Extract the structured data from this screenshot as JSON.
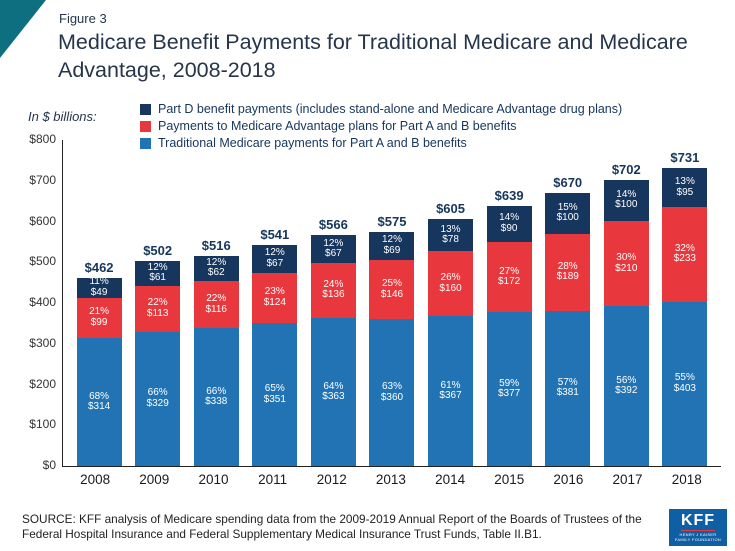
{
  "header": {
    "figure_label": "Figure 3",
    "title": "Medicare Benefit Payments for Traditional Medicare and Medicare Advantage, 2008-2018"
  },
  "chart_data": {
    "type": "stacked-bar",
    "title": "Medicare Benefit Payments for Traditional Medicare and Medicare Advantage, 2008-2018",
    "units_label": "In $ billions:",
    "ylim": [
      0,
      800
    ],
    "ytick_step": 100,
    "ytick_labels": [
      "$0",
      "$100",
      "$200",
      "$300",
      "$400",
      "$500",
      "$600",
      "$700",
      "$800"
    ],
    "grid": false,
    "legend_position": "top",
    "legend": [
      {
        "label": "Part D benefit payments (includes stand-alone and Medicare Advantage drug plans)",
        "color": "#17365d"
      },
      {
        "label": "Payments to Medicare Advantage plans for Part A and B benefits",
        "color": "#e8383d"
      },
      {
        "label": "Traditional Medicare payments for Part A and B benefits",
        "color": "#2173b4"
      }
    ],
    "categories": [
      "2008",
      "2009",
      "2010",
      "2011",
      "2012",
      "2013",
      "2014",
      "2015",
      "2016",
      "2017",
      "2018"
    ],
    "totals": [
      462,
      502,
      516,
      541,
      566,
      575,
      605,
      639,
      670,
      702,
      731
    ],
    "total_labels": [
      "$462",
      "$502",
      "$516",
      "$541",
      "$566",
      "$575",
      "$605",
      "$639",
      "$670",
      "$702",
      "$731"
    ],
    "series": [
      {
        "id": "traditional",
        "name": "Traditional Medicare payments for Part A and B benefits",
        "color": "#2173b4",
        "values": [
          314,
          329,
          338,
          351,
          363,
          360,
          367,
          377,
          381,
          392,
          403
        ],
        "pct_labels": [
          "68%",
          "66%",
          "66%",
          "65%",
          "64%",
          "63%",
          "61%",
          "59%",
          "57%",
          "56%",
          "55%"
        ],
        "value_labels": [
          "$314",
          "$329",
          "$338",
          "$351",
          "$363",
          "$360",
          "$367",
          "$377",
          "$381",
          "$392",
          "$403"
        ]
      },
      {
        "id": "medicare-advantage",
        "name": "Payments to Medicare Advantage plans for Part A and B benefits",
        "color": "#e8383d",
        "values": [
          99,
          113,
          116,
          124,
          136,
          146,
          160,
          172,
          189,
          210,
          233
        ],
        "pct_labels": [
          "21%",
          "22%",
          "22%",
          "23%",
          "24%",
          "25%",
          "26%",
          "27%",
          "28%",
          "30%",
          "32%"
        ],
        "value_labels": [
          "$99",
          "$113",
          "$116",
          "$124",
          "$136",
          "$146",
          "$160",
          "$172",
          "$189",
          "$210",
          "$233"
        ]
      },
      {
        "id": "part-d",
        "name": "Part D benefit payments (includes stand-alone and Medicare Advantage drug plans)",
        "color": "#17365d",
        "values": [
          49,
          61,
          62,
          67,
          67,
          69,
          78,
          90,
          100,
          100,
          95
        ],
        "pct_labels": [
          "11%",
          "12%",
          "12%",
          "12%",
          "12%",
          "12%",
          "13%",
          "14%",
          "15%",
          "14%",
          "13%"
        ],
        "value_labels": [
          "$49",
          "$61",
          "$62",
          "$67",
          "$67",
          "$69",
          "$78",
          "$90",
          "$100",
          "$100",
          "$95"
        ]
      }
    ]
  },
  "footer": {
    "source": "SOURCE: KFF analysis of Medicare spending data from the 2009-2019 Annual Report of the Boards of Trustees of the Federal Hospital Insurance and Federal Supplementary Medical Insurance Trust Funds, Table II.B1."
  },
  "logo": {
    "text": "KFF",
    "sub_line1": "HENRY J KAISER",
    "sub_line2": "FAMILY FOUNDATION"
  },
  "colors": {
    "accent_teal": "#0d6f80",
    "navy": "#17365d",
    "red": "#e8383d",
    "blue": "#2173b4",
    "logo_blue": "#0e5fa3"
  }
}
